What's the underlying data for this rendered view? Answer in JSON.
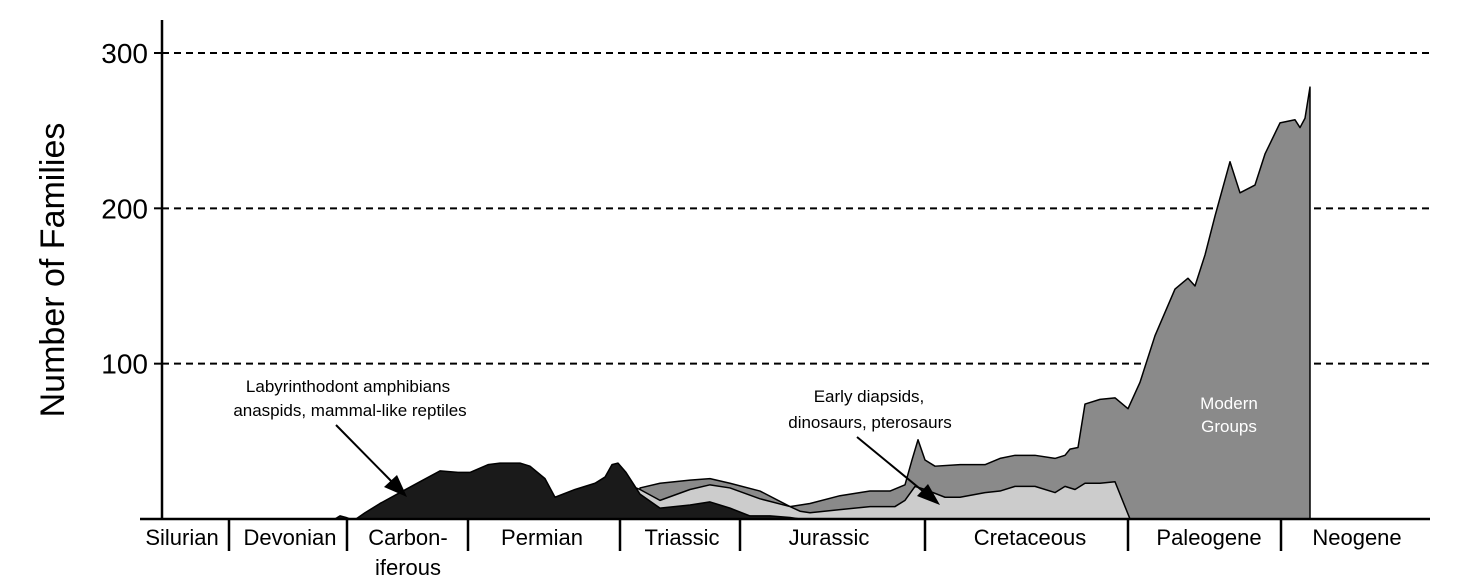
{
  "chart_data": {
    "type": "area",
    "ylabel": "Number of Families",
    "ylim": [
      0,
      300
    ],
    "yticks": [
      100,
      200,
      300
    ],
    "grid": "dashed horizontal lines at y ticks",
    "periods": [
      "Silurian",
      "Devonian",
      "Carbon-\niferous",
      "Permian",
      "Triassic",
      "Jurassic",
      "Cretaceous",
      "Paleogene",
      "Neogene"
    ],
    "period_lines": [
      "Carbon-",
      "iferous"
    ],
    "period_label_carbon_1": "Carbon-",
    "period_label_carbon_2": "iferous",
    "series": [
      {
        "name": "Labyrinthodont amphibians anaspids, mammal-like reptiles",
        "color": "#1a1a1a",
        "points": [
          [
            335,
            0
          ],
          [
            340,
            2
          ],
          [
            346,
            1
          ],
          [
            350,
            0
          ],
          [
            356,
            0
          ],
          [
            365,
            4
          ],
          [
            380,
            10
          ],
          [
            400,
            17
          ],
          [
            420,
            24
          ],
          [
            440,
            31
          ],
          [
            458,
            30
          ],
          [
            470,
            30
          ],
          [
            488,
            35
          ],
          [
            500,
            36
          ],
          [
            520,
            36
          ],
          [
            530,
            34
          ],
          [
            545,
            26
          ],
          [
            555,
            14
          ],
          [
            575,
            19
          ],
          [
            595,
            23
          ],
          [
            605,
            27
          ],
          [
            612,
            35
          ],
          [
            618,
            36
          ],
          [
            626,
            30
          ],
          [
            640,
            16
          ],
          [
            660,
            7
          ],
          [
            690,
            9
          ],
          [
            710,
            11
          ],
          [
            730,
            7
          ],
          [
            750,
            2
          ],
          [
            770,
            2
          ],
          [
            790,
            1
          ],
          [
            800,
            0
          ]
        ]
      },
      {
        "name": "Early diapsids, dinosaurs, pterosaurs",
        "color": "#cccccc",
        "points": [
          [
            620,
            0
          ],
          [
            628,
            22
          ],
          [
            640,
            19
          ],
          [
            660,
            12
          ],
          [
            690,
            19
          ],
          [
            710,
            22
          ],
          [
            730,
            20
          ],
          [
            760,
            13
          ],
          [
            790,
            8
          ],
          [
            800,
            5
          ],
          [
            810,
            4
          ],
          [
            840,
            6
          ],
          [
            870,
            8
          ],
          [
            895,
            8
          ],
          [
            905,
            12
          ],
          [
            915,
            21
          ],
          [
            925,
            19
          ],
          [
            945,
            14
          ],
          [
            960,
            14
          ],
          [
            985,
            17
          ],
          [
            1000,
            18
          ],
          [
            1015,
            21
          ],
          [
            1035,
            21
          ],
          [
            1055,
            17
          ],
          [
            1065,
            21
          ],
          [
            1075,
            19
          ],
          [
            1085,
            23
          ],
          [
            1100,
            23
          ],
          [
            1115,
            24
          ],
          [
            1130,
            0
          ]
        ]
      },
      {
        "name": "Modern Groups",
        "color": "#8a8a8a",
        "points": [
          [
            640,
            20
          ],
          [
            660,
            23
          ],
          [
            690,
            25
          ],
          [
            710,
            26
          ],
          [
            730,
            23
          ],
          [
            760,
            18
          ],
          [
            790,
            8
          ],
          [
            810,
            10
          ],
          [
            840,
            15
          ],
          [
            870,
            18
          ],
          [
            890,
            18
          ],
          [
            905,
            22
          ],
          [
            912,
            38
          ],
          [
            918,
            51
          ],
          [
            925,
            38
          ],
          [
            935,
            34
          ],
          [
            960,
            35
          ],
          [
            985,
            35
          ],
          [
            1000,
            39
          ],
          [
            1015,
            41
          ],
          [
            1035,
            41
          ],
          [
            1055,
            39
          ],
          [
            1065,
            41
          ],
          [
            1070,
            45
          ],
          [
            1078,
            46
          ],
          [
            1085,
            74
          ],
          [
            1100,
            77
          ],
          [
            1115,
            78
          ],
          [
            1128,
            71
          ],
          [
            1140,
            88
          ],
          [
            1155,
            118
          ],
          [
            1175,
            148
          ],
          [
            1188,
            155
          ],
          [
            1195,
            150
          ],
          [
            1205,
            170
          ],
          [
            1215,
            195
          ],
          [
            1230,
            230
          ],
          [
            1240,
            210
          ],
          [
            1255,
            215
          ],
          [
            1265,
            235
          ],
          [
            1280,
            255
          ],
          [
            1295,
            257
          ],
          [
            1300,
            252
          ],
          [
            1305,
            258
          ],
          [
            1310,
            278
          ],
          [
            1310,
            0
          ]
        ]
      }
    ],
    "annotations": [
      {
        "text": "Labyrinthodont amphibians",
        "text2": "anaspids, mammal-like reptiles"
      },
      {
        "text": "Early diapsids,",
        "text2": "dinosaurs, pterosaurs"
      },
      {
        "text": "Modern",
        "text2": "Groups"
      }
    ]
  }
}
